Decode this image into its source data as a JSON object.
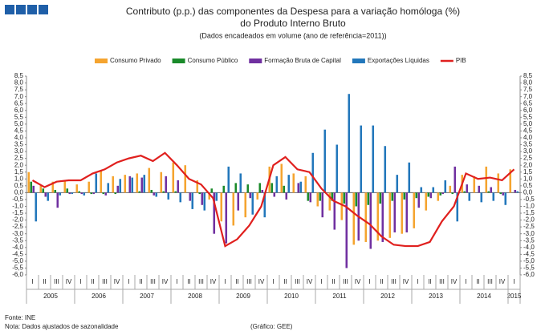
{
  "chart_data": {
    "type": "bar_line",
    "title": "Contributo (p.p.) das componentes da Despesa para a variação homóloga (%)",
    "title_line2": "do Produto Interno Bruto",
    "subtitle": "(Dados encadeados em volume  (ano de referência=2011))",
    "categories": [
      "I",
      "II",
      "III",
      "IV",
      "I",
      "II",
      "III",
      "IV",
      "I",
      "II",
      "III",
      "IV",
      "I",
      "II",
      "III",
      "IV",
      "I",
      "II",
      "III",
      "IV",
      "I",
      "II",
      "III",
      "IV",
      "I",
      "II",
      "III",
      "IV",
      "I",
      "II",
      "III",
      "IV",
      "I",
      "II",
      "III",
      "IV",
      "I",
      "II",
      "III",
      "IV",
      "I"
    ],
    "years": [
      "2005",
      "2006",
      "2007",
      "2008",
      "2009",
      "2010",
      "2011",
      "2012",
      "2013",
      "2014",
      "2015"
    ],
    "series": [
      {
        "name": "Consumo Privado",
        "color": "#f5a42f",
        "kind": "bar",
        "values": [
          1.5,
          0.5,
          0.8,
          0.9,
          0.6,
          0.8,
          1.6,
          1.2,
          1.3,
          1.4,
          1.8,
          1.5,
          2.2,
          2.0,
          0.9,
          -0.5,
          -2.1,
          -2.4,
          -1.8,
          -0.5,
          1.9,
          2.1,
          1.4,
          1.2,
          -1.0,
          -1.3,
          -2.0,
          -3.8,
          -3.6,
          -3.5,
          -3.3,
          -3.0,
          -2.6,
          -1.3,
          -0.6,
          0.5,
          1.3,
          1.2,
          1.9,
          1.4,
          1.7
        ]
      },
      {
        "name": "Consumo Público",
        "color": "#1a8a2a",
        "kind": "bar",
        "values": [
          0.8,
          0.3,
          0.2,
          0.3,
          0.1,
          -0.1,
          -0.1,
          -0.1,
          0.0,
          0.1,
          0.2,
          0.1,
          0.1,
          0.0,
          -0.1,
          0.3,
          0.5,
          0.7,
          0.6,
          0.7,
          0.7,
          0.5,
          0.0,
          -0.6,
          -0.6,
          -0.6,
          -0.8,
          -1.0,
          -0.9,
          -0.8,
          -0.6,
          -0.5,
          -0.4,
          -0.3,
          -0.2,
          -0.1,
          0.1,
          0.0,
          0.1,
          -0.1,
          0.0
        ]
      },
      {
        "name": "Formação Bruta de Capital",
        "color": "#7030a0",
        "kind": "bar",
        "values": [
          0.5,
          -0.3,
          -1.1,
          -0.1,
          -0.1,
          -0.1,
          -0.2,
          0.5,
          1.2,
          1.1,
          -0.2,
          1.2,
          0.9,
          -0.6,
          -0.9,
          -3.0,
          -3.7,
          -1.3,
          -0.4,
          0.2,
          -0.3,
          -0.5,
          0.7,
          -0.7,
          -1.8,
          -2.7,
          -5.5,
          -3.5,
          -4.1,
          -3.6,
          -2.9,
          -2.9,
          -1.1,
          -0.4,
          -0.1,
          1.9,
          0.6,
          0.5,
          0.4,
          -0.2,
          0.2
        ]
      },
      {
        "name": "Exportações Líquidas",
        "color": "#2277bb",
        "kind": "bar",
        "values": [
          -2.1,
          -0.6,
          -0.2,
          -0.1,
          -0.2,
          1.4,
          0.7,
          1.0,
          1.1,
          1.3,
          -0.3,
          -0.5,
          -0.7,
          -1.2,
          -1.3,
          -0.6,
          1.9,
          1.4,
          -1.6,
          -1.8,
          1.2,
          1.3,
          0.8,
          2.9,
          4.6,
          3.5,
          7.2,
          4.9,
          4.9,
          3.4,
          1.3,
          2.2,
          0.4,
          0.4,
          0.9,
          -2.1,
          -0.6,
          -0.7,
          -0.6,
          -0.9,
          0.1
        ]
      },
      {
        "name": "PIB",
        "color": "#e0201e",
        "kind": "line",
        "values": [
          0.9,
          0.4,
          0.8,
          0.9,
          0.9,
          1.4,
          1.7,
          2.2,
          2.5,
          2.7,
          2.3,
          2.9,
          2.0,
          1.0,
          0.6,
          -0.4,
          -3.9,
          -3.4,
          -2.4,
          -1.0,
          2.0,
          2.6,
          1.7,
          1.5,
          0.3,
          -0.6,
          -1.0,
          -1.7,
          -2.3,
          -3.2,
          -3.8,
          -3.9,
          -3.9,
          -3.6,
          -2.1,
          -1.0,
          1.4,
          1.0,
          1.1,
          0.9,
          1.7
        ]
      }
    ],
    "ylim": [
      -6.0,
      8.5
    ],
    "yticks": [
      {
        "value": -6.0,
        "label": "-6,0"
      },
      {
        "value": -5.5,
        "label": "-5,5"
      },
      {
        "value": -5.0,
        "label": "-5,0"
      },
      {
        "value": -4.5,
        "label": "-4,5"
      },
      {
        "value": -4.0,
        "label": "-4,0"
      },
      {
        "value": -3.5,
        "label": "-3,5"
      },
      {
        "value": -3.0,
        "label": "-3,0"
      },
      {
        "value": -2.5,
        "label": "-2,5"
      },
      {
        "value": -2.0,
        "label": "-2,0"
      },
      {
        "value": -1.5,
        "label": "-1,5"
      },
      {
        "value": -1.0,
        "label": "-1,0"
      },
      {
        "value": -0.5,
        "label": "-0,5"
      },
      {
        "value": 0,
        "label": "0,0"
      },
      {
        "value": 0.5,
        "label": "0,5"
      },
      {
        "value": 1.0,
        "label": "1,0"
      },
      {
        "value": 1.5,
        "label": "1,5"
      },
      {
        "value": 2.0,
        "label": "2,0"
      },
      {
        "value": 2.5,
        "label": "2,5"
      },
      {
        "value": 3.0,
        "label": "3,0"
      },
      {
        "value": 3.5,
        "label": "3,5"
      },
      {
        "value": 4.0,
        "label": "4,0"
      },
      {
        "value": 4.5,
        "label": "4,5"
      },
      {
        "value": 5.0,
        "label": "5,0"
      },
      {
        "value": 5.5,
        "label": "5,5"
      },
      {
        "value": 6.0,
        "label": "6,0"
      },
      {
        "value": 6.5,
        "label": "6,5"
      },
      {
        "value": 7.0,
        "label": "7,0"
      },
      {
        "value": 7.5,
        "label": "7,5"
      },
      {
        "value": 8.0,
        "label": "8,0"
      },
      {
        "value": 8.5,
        "label": "8,5"
      }
    ],
    "source": "Fonte:  INE",
    "note": "Nota: Dados ajustados de sazonalidade",
    "credit": "(Gráfico:  GEE)"
  }
}
